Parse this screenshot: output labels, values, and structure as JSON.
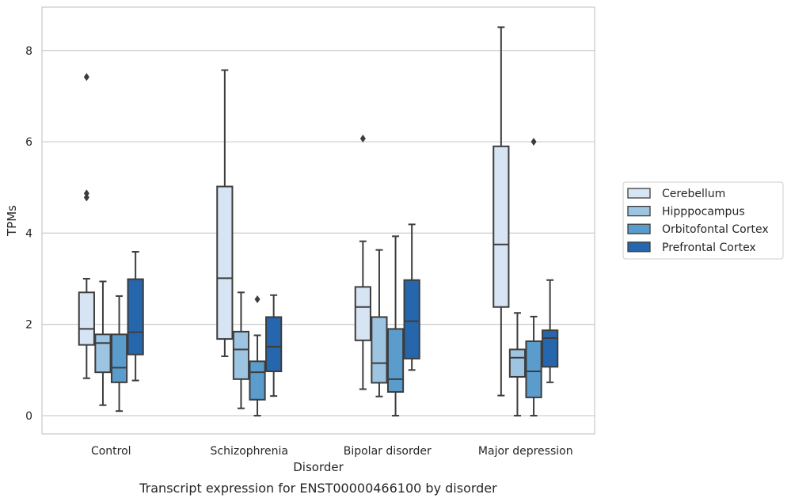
{
  "chart_data": {
    "type": "box",
    "title": "",
    "caption": "Transcript expression for ENST00000466100 by disorder",
    "xlabel": "Disorder",
    "ylabel": "TPMs",
    "ylim": [
      -0.4,
      8.95
    ],
    "yticks": [
      0,
      2,
      4,
      6,
      8
    ],
    "categories": [
      "Control",
      "Schizophrenia",
      "Bipolar disorder",
      "Major depression"
    ],
    "grid": "horizontal",
    "legend_position": "right",
    "series": [
      {
        "name": "Cerebellum",
        "color": "#d6e4f3",
        "boxes": [
          {
            "whisker_low": 0.82,
            "q1": 1.55,
            "median": 1.9,
            "q3": 2.7,
            "whisker_high": 3.0,
            "outliers": [
              7.42,
              4.87,
              4.78
            ]
          },
          {
            "whisker_low": 1.3,
            "q1": 1.68,
            "median": 3.01,
            "q3": 5.02,
            "whisker_high": 7.57,
            "outliers": []
          },
          {
            "whisker_low": 0.58,
            "q1": 1.65,
            "median": 2.38,
            "q3": 2.82,
            "whisker_high": 3.82,
            "outliers": [
              6.07
            ]
          },
          {
            "whisker_low": 0.44,
            "q1": 2.38,
            "median": 3.75,
            "q3": 5.9,
            "whisker_high": 8.51,
            "outliers": []
          }
        ]
      },
      {
        "name": "Hipppocampus",
        "color": "#9dc4e0",
        "boxes": [
          {
            "whisker_low": 0.23,
            "q1": 0.95,
            "median": 1.59,
            "q3": 1.78,
            "whisker_high": 2.94,
            "outliers": []
          },
          {
            "whisker_low": 0.16,
            "q1": 0.8,
            "median": 1.45,
            "q3": 1.84,
            "whisker_high": 2.7,
            "outliers": []
          },
          {
            "whisker_low": 0.42,
            "q1": 0.72,
            "median": 1.15,
            "q3": 2.16,
            "whisker_high": 3.63,
            "outliers": []
          },
          {
            "whisker_low": 0.0,
            "q1": 0.85,
            "median": 1.27,
            "q3": 1.45,
            "whisker_high": 2.25,
            "outliers": []
          }
        ]
      },
      {
        "name": "Orbitofontal Cortex",
        "color": "#5a9ccb",
        "boxes": [
          {
            "whisker_low": 0.1,
            "q1": 0.73,
            "median": 1.05,
            "q3": 1.78,
            "whisker_high": 2.62,
            "outliers": []
          },
          {
            "whisker_low": 0.0,
            "q1": 0.35,
            "median": 0.95,
            "q3": 1.19,
            "whisker_high": 1.76,
            "outliers": [
              2.55
            ]
          },
          {
            "whisker_low": 0.0,
            "q1": 0.52,
            "median": 0.8,
            "q3": 1.9,
            "whisker_high": 3.93,
            "outliers": []
          },
          {
            "whisker_low": 0.0,
            "q1": 0.4,
            "median": 0.97,
            "q3": 1.63,
            "whisker_high": 2.17,
            "outliers": [
              6.0
            ]
          }
        ]
      },
      {
        "name": "Prefrontal Cortex",
        "color": "#2666ad",
        "boxes": [
          {
            "whisker_low": 0.77,
            "q1": 1.34,
            "median": 1.83,
            "q3": 2.99,
            "whisker_high": 3.59,
            "outliers": []
          },
          {
            "whisker_low": 0.43,
            "q1": 0.97,
            "median": 1.51,
            "q3": 2.16,
            "whisker_high": 2.64,
            "outliers": []
          },
          {
            "whisker_low": 1.0,
            "q1": 1.25,
            "median": 2.07,
            "q3": 2.97,
            "whisker_high": 4.19,
            "outliers": []
          },
          {
            "whisker_low": 0.73,
            "q1": 1.07,
            "median": 1.7,
            "q3": 1.87,
            "whisker_high": 2.97,
            "outliers": []
          }
        ]
      }
    ]
  }
}
